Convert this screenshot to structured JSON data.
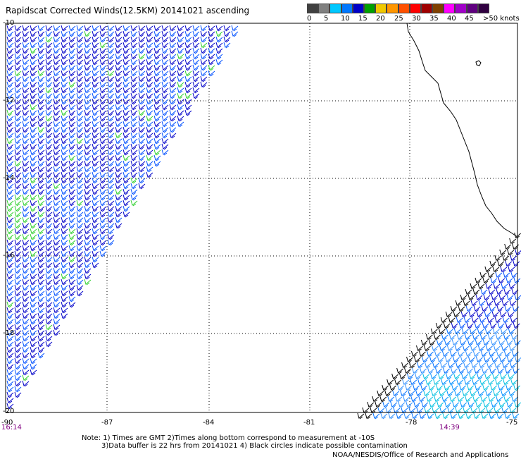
{
  "title": "Rapidscat Corrected Winds(12.5KM) 20141021 ascending",
  "legend": {
    "labels": [
      "0",
      "5",
      "10",
      "15",
      "20",
      "25",
      "30",
      "35",
      "40",
      "45",
      ">50 knots"
    ],
    "colors": [
      "#404040",
      "#808080",
      "#00c8ff",
      "#0078ff",
      "#0000c8",
      "#00a000",
      "#f0c800",
      "#ff9600",
      "#ff5000",
      "#ff0000",
      "#a00000",
      "#804000",
      "#ff00ff",
      "#a000c8",
      "#600080",
      "#300040"
    ]
  },
  "lat_labels": [
    "-10",
    "-12",
    "-14",
    "-16",
    "-18",
    "-20"
  ],
  "lon_labels": [
    "-90",
    "-87",
    "-84",
    "-81",
    "-78",
    "-75"
  ],
  "time_labels": {
    "left": "16:14",
    "right": "14:39"
  },
  "notes": [
    "Note: 1) Times are GMT 2)Times along bottom correspond to measurement at -10S",
    "3)Data buffer is 22 hrs from 20141021 4) Black circles indicate possible contamination"
  ],
  "credit": "NOAA/NESDIS/Office of Research and Applications"
}
